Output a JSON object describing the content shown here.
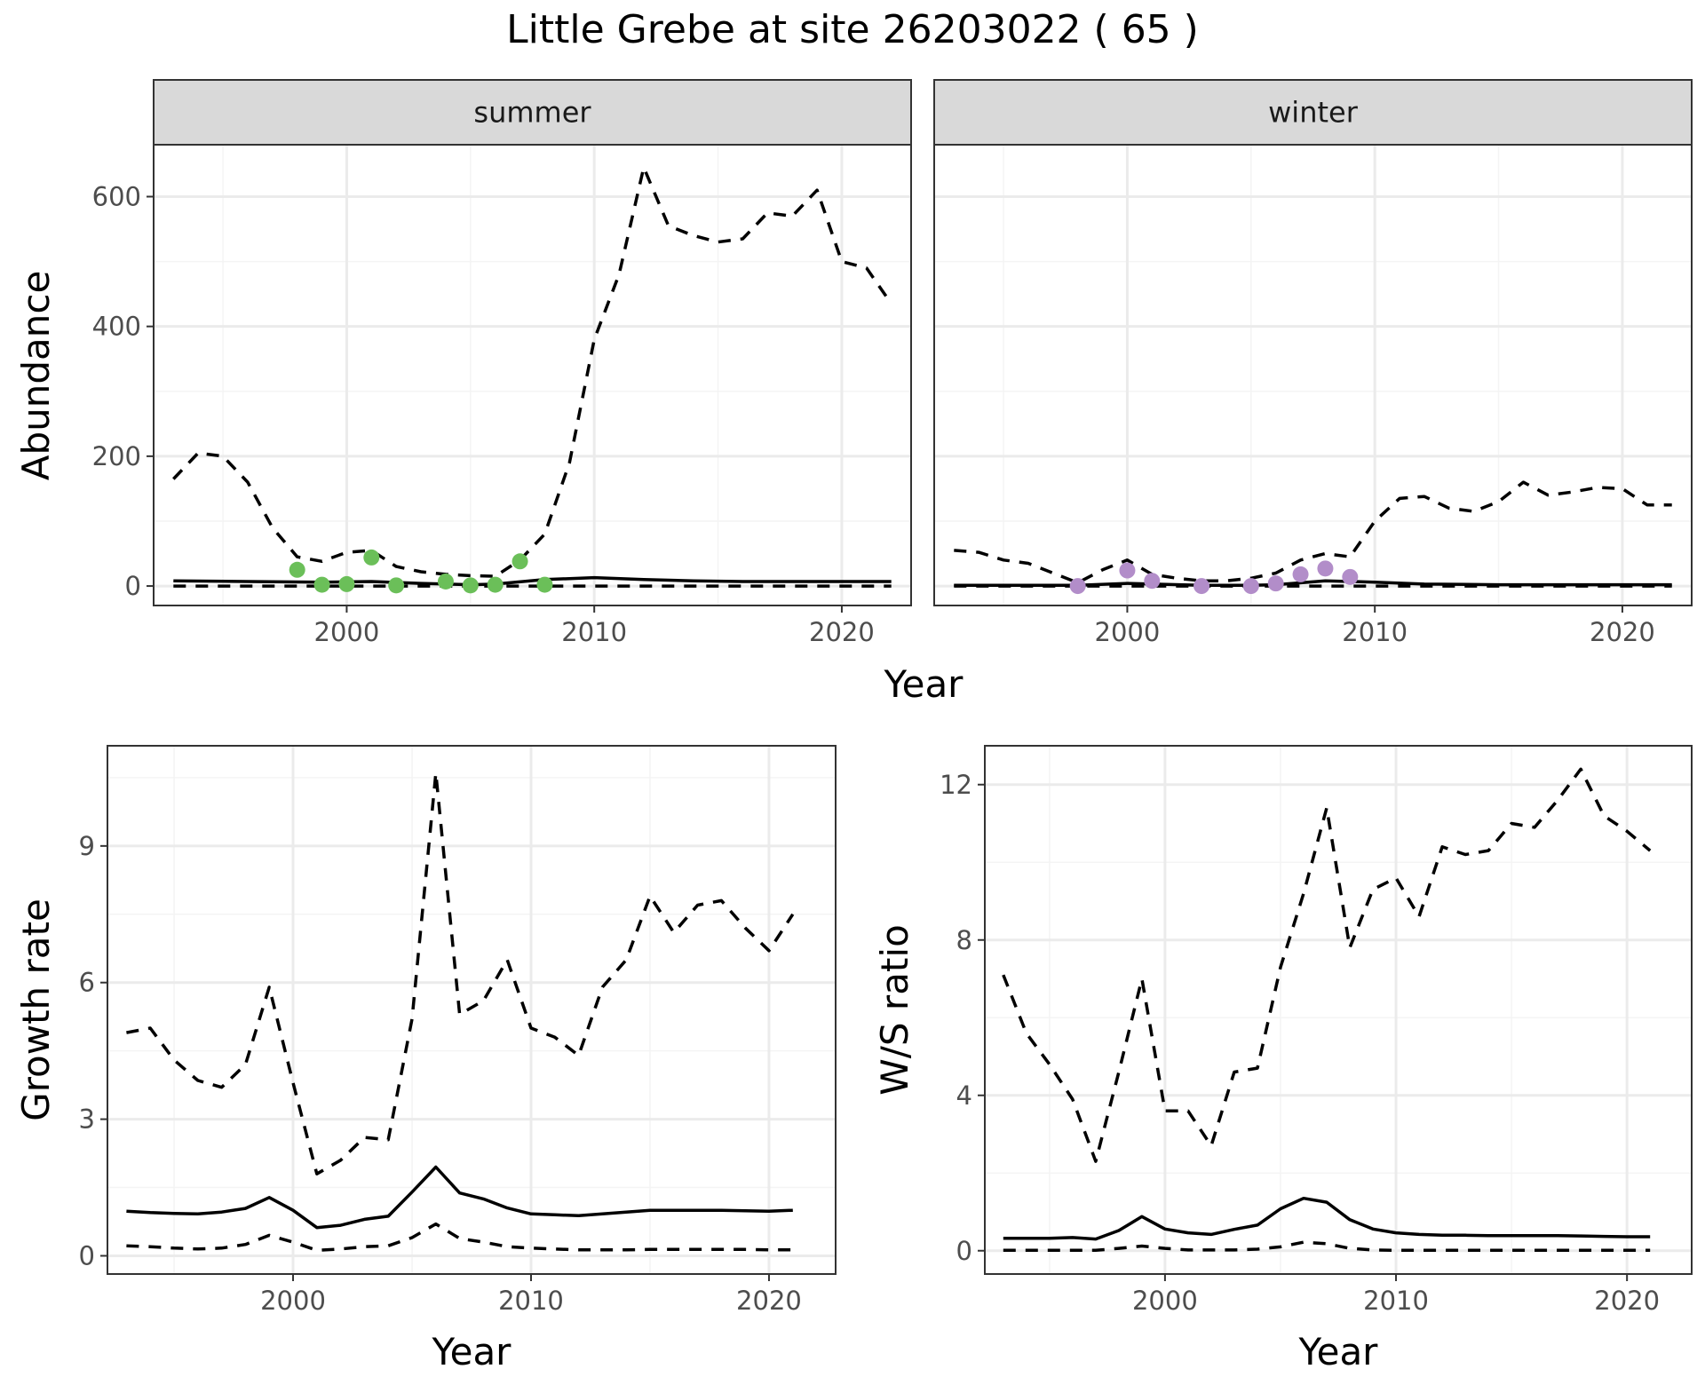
{
  "page_title": "Little Grebe at site 26203022 ( 65 )",
  "colors": {
    "summer_points": "#6bbf59",
    "winter_points": "#b28dc9",
    "lines": "#000000",
    "strip": "#d9d9d9"
  },
  "chart_data": [
    {
      "id": "abundance",
      "type": "line",
      "facets": [
        "summer",
        "winter"
      ],
      "xlabel": "Year",
      "ylabel": "Abundance",
      "xlim": [
        1992.2,
        2022.8
      ],
      "ylim": [
        -30,
        680
      ],
      "xticks": [
        2000,
        2010,
        2020
      ],
      "yticks": [
        0,
        200,
        400,
        600
      ],
      "grid": true,
      "panels": [
        {
          "facet": "summer",
          "upper": {
            "x": [
              1993,
              1994,
              1995,
              1996,
              1997,
              1998,
              1999,
              2000,
              2001,
              2002,
              2003,
              2004,
              2005,
              2006,
              2007,
              2008,
              2009,
              2010,
              2011,
              2012,
              2013,
              2014,
              2015,
              2016,
              2017,
              2018,
              2019,
              2020,
              2021,
              2022
            ],
            "y": [
              165,
              205,
              200,
              160,
              90,
              45,
              38,
              52,
              55,
              30,
              22,
              18,
              16,
              15,
              40,
              80,
              190,
              380,
              480,
              645,
              555,
              540,
              530,
              535,
              575,
              570,
              610,
              500,
              490,
              435
            ]
          },
          "mid": {
            "x": [
              1993,
              1996,
              1999,
              2001,
              2003,
              2005,
              2006,
              2008,
              2010,
              2012,
              2014,
              2016,
              2018,
              2020,
              2022
            ],
            "y": [
              8,
              7,
              6,
              7,
              4,
              2,
              3,
              10,
              13,
              10,
              8,
              7,
              7,
              7,
              7
            ]
          },
          "lower": {
            "x": [
              1993,
              2000,
              2005,
              2010,
              2015,
              2022
            ],
            "y": [
              0,
              0,
              0,
              0,
              0,
              0
            ]
          },
          "points": {
            "x": [
              1998,
              1999,
              2000,
              2001,
              2002,
              2004,
              2005,
              2006,
              2007,
              2008
            ],
            "y": [
              25,
              2,
              3,
              44,
              1,
              7,
              1,
              2,
              38,
              2
            ]
          }
        },
        {
          "facet": "winter",
          "upper": {
            "x": [
              1993,
              1994,
              1995,
              1996,
              1997,
              1998,
              1999,
              2000,
              2001,
              2002,
              2003,
              2004,
              2005,
              2006,
              2007,
              2008,
              2009,
              2010,
              2011,
              2012,
              2013,
              2014,
              2015,
              2016,
              2017,
              2018,
              2019,
              2020,
              2021,
              2022
            ],
            "y": [
              55,
              52,
              40,
              35,
              20,
              5,
              25,
              40,
              18,
              12,
              8,
              8,
              12,
              20,
              40,
              50,
              45,
              100,
              135,
              138,
              120,
              115,
              130,
              160,
              140,
              145,
              152,
              150,
              125,
              125
            ]
          },
          "mid": {
            "x": [
              1993,
              1996,
              1998,
              2000,
              2003,
              2005,
              2006,
              2008,
              2010,
              2012,
              2015,
              2018,
              2022
            ],
            "y": [
              1,
              1,
              1,
              4,
              1,
              1,
              2,
              8,
              6,
              3,
              2,
              2,
              2
            ]
          },
          "lower": {
            "x": [
              1993,
              2000,
              2005,
              2010,
              2015,
              2022
            ],
            "y": [
              0,
              0,
              0,
              0,
              0,
              0
            ]
          },
          "points": {
            "x": [
              1998,
              2000,
              2001,
              2003,
              2005,
              2006,
              2007,
              2008,
              2009
            ],
            "y": [
              0,
              24,
              8,
              0,
              0,
              4,
              18,
              27,
              14
            ]
          }
        }
      ]
    },
    {
      "id": "growth",
      "type": "line",
      "xlabel": "Year",
      "ylabel": "Growth rate",
      "xlim": [
        1992.2,
        2022.8
      ],
      "ylim": [
        -0.4,
        11.2
      ],
      "xticks": [
        2000,
        2010,
        2020
      ],
      "yticks": [
        0,
        3,
        6,
        9
      ],
      "grid": true,
      "upper": {
        "x": [
          1993,
          1994,
          1995,
          1996,
          1997,
          1998,
          1999,
          2000,
          2001,
          2002,
          2003,
          2004,
          2005,
          2006,
          2007,
          2008,
          2009,
          2010,
          2011,
          2012,
          2013,
          2014,
          2015,
          2016,
          2017,
          2018,
          2019,
          2020,
          2021
        ],
        "y": [
          4.9,
          5.0,
          4.3,
          3.85,
          3.7,
          4.2,
          5.9,
          3.8,
          1.8,
          2.1,
          2.6,
          2.55,
          5.2,
          10.6,
          5.3,
          5.6,
          6.5,
          5.0,
          4.8,
          4.4,
          5.9,
          6.5,
          7.9,
          7.1,
          7.7,
          7.8,
          7.2,
          6.7,
          7.5
        ]
      },
      "mid": {
        "x": [
          1993,
          1994,
          1995,
          1996,
          1997,
          1998,
          1999,
          2000,
          2001,
          2002,
          2003,
          2004,
          2005,
          2006,
          2007,
          2008,
          2009,
          2010,
          2011,
          2012,
          2013,
          2014,
          2015,
          2016,
          2017,
          2018,
          2019,
          2020,
          2021
        ],
        "y": [
          0.98,
          0.95,
          0.93,
          0.92,
          0.96,
          1.04,
          1.28,
          1.0,
          0.62,
          0.67,
          0.8,
          0.87,
          1.4,
          1.95,
          1.38,
          1.25,
          1.05,
          0.92,
          0.9,
          0.88,
          0.92,
          0.96,
          1.0,
          1.0,
          1.0,
          1.0,
          0.99,
          0.98,
          1.0
        ]
      },
      "lower": {
        "x": [
          1993,
          1994,
          1995,
          1996,
          1997,
          1998,
          1999,
          2000,
          2001,
          2002,
          2003,
          2004,
          2005,
          2006,
          2007,
          2008,
          2009,
          2010,
          2011,
          2012,
          2013,
          2014,
          2015,
          2016,
          2017,
          2018,
          2019,
          2020,
          2021
        ],
        "y": [
          0.22,
          0.2,
          0.17,
          0.15,
          0.17,
          0.25,
          0.45,
          0.3,
          0.12,
          0.15,
          0.2,
          0.22,
          0.4,
          0.7,
          0.38,
          0.3,
          0.2,
          0.17,
          0.15,
          0.13,
          0.13,
          0.13,
          0.14,
          0.14,
          0.14,
          0.14,
          0.14,
          0.13,
          0.13
        ]
      }
    },
    {
      "id": "ws_ratio",
      "type": "line",
      "xlabel": "Year",
      "ylabel": "W/S ratio",
      "xlim": [
        1992.2,
        2022.8
      ],
      "ylim": [
        -0.6,
        13.0
      ],
      "xticks": [
        2000,
        2010,
        2020
      ],
      "yticks": [
        0,
        4,
        8,
        12
      ],
      "grid": true,
      "upper": {
        "x": [
          1993,
          1994,
          1995,
          1996,
          1997,
          1998,
          1999,
          2000,
          2001,
          2002,
          2003,
          2004,
          2005,
          2006,
          2007,
          2008,
          2009,
          2010,
          2011,
          2012,
          2013,
          2014,
          2015,
          2016,
          2017,
          2018,
          2019,
          2020,
          2021
        ],
        "y": [
          7.1,
          5.6,
          4.8,
          3.9,
          2.3,
          4.6,
          7.0,
          3.6,
          3.6,
          2.7,
          4.6,
          4.7,
          7.3,
          9.2,
          11.4,
          7.8,
          9.3,
          9.6,
          8.6,
          10.4,
          10.2,
          10.3,
          11.0,
          10.9,
          11.6,
          12.4,
          11.2,
          10.8,
          10.3
        ]
      },
      "mid": {
        "x": [
          1993,
          1994,
          1995,
          1996,
          1997,
          1998,
          1999,
          2000,
          2001,
          2002,
          2003,
          2004,
          2005,
          2006,
          2007,
          2008,
          2009,
          2010,
          2011,
          2012,
          2013,
          2014,
          2015,
          2016,
          2017,
          2018,
          2019,
          2020,
          2021
        ],
        "y": [
          0.32,
          0.32,
          0.32,
          0.34,
          0.3,
          0.52,
          0.88,
          0.56,
          0.46,
          0.42,
          0.55,
          0.66,
          1.08,
          1.35,
          1.25,
          0.8,
          0.56,
          0.46,
          0.42,
          0.4,
          0.4,
          0.39,
          0.39,
          0.39,
          0.39,
          0.38,
          0.37,
          0.36,
          0.36
        ]
      },
      "lower": {
        "x": [
          1993,
          1995,
          1997,
          1998,
          1999,
          2000,
          2001,
          2003,
          2004,
          2005,
          2006,
          2007,
          2008,
          2009,
          2010,
          2015,
          2021
        ],
        "y": [
          0.01,
          0.01,
          0.01,
          0.06,
          0.12,
          0.06,
          0.02,
          0.02,
          0.04,
          0.1,
          0.22,
          0.18,
          0.06,
          0.02,
          0.01,
          0.01,
          0.01
        ]
      }
    }
  ]
}
